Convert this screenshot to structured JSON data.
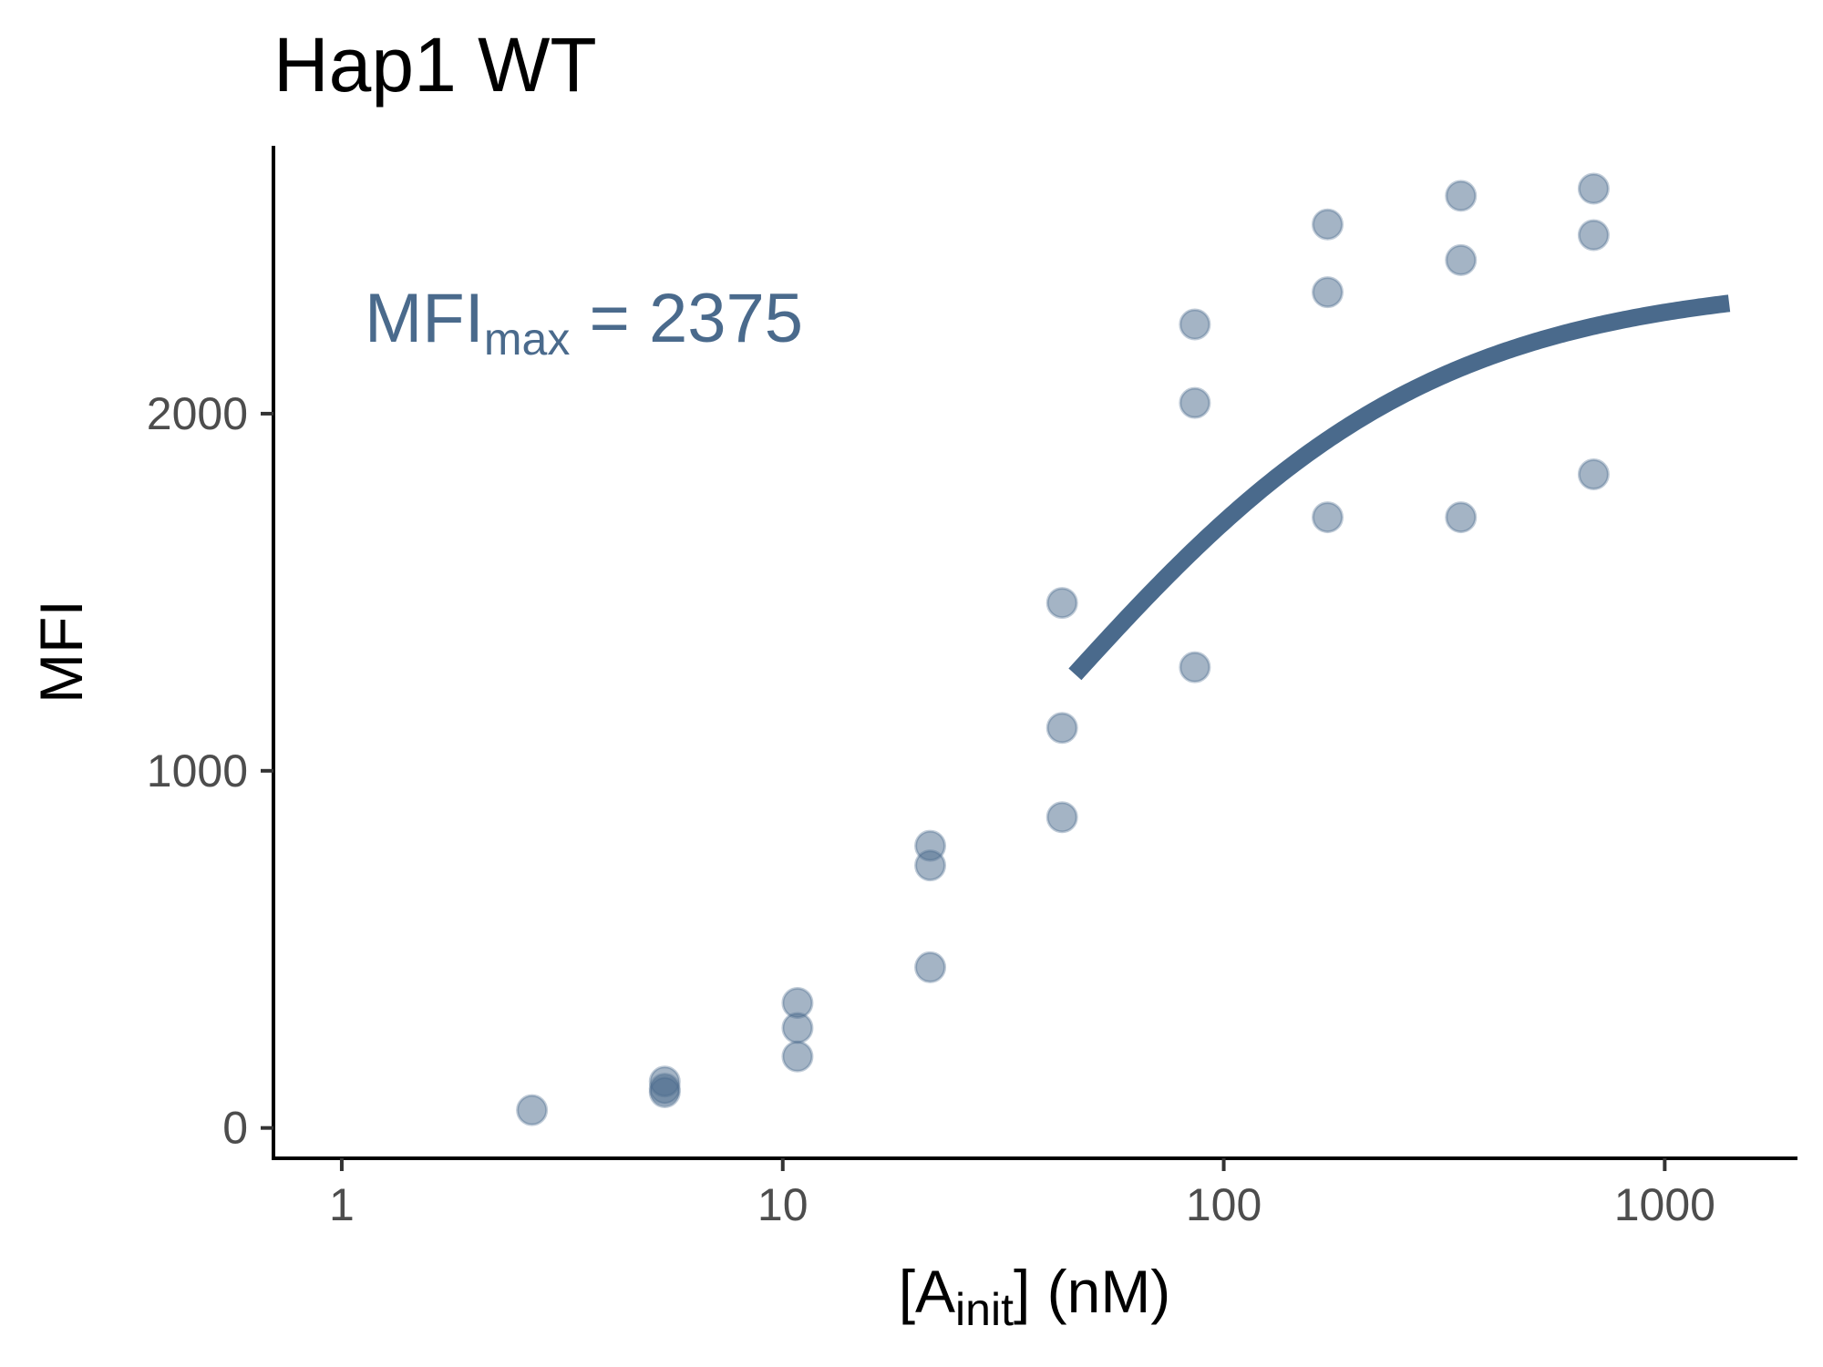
{
  "chart_data": {
    "type": "scatter",
    "title": "Hap1 WT",
    "xlabel": {
      "main": "[A",
      "sub": "init",
      "tail": "] (nM)"
    },
    "ylabel": "MFI",
    "x_scale": "log10",
    "xlim": [
      0.7,
      2000
    ],
    "ylim": [
      -85,
      2750
    ],
    "x_ticks": [
      {
        "value": 1,
        "label": "1"
      },
      {
        "value": 10,
        "label": "10"
      },
      {
        "value": 100,
        "label": "100"
      },
      {
        "value": 1000,
        "label": "1000"
      }
    ],
    "y_ticks": [
      {
        "value": 0,
        "label": "0"
      },
      {
        "value": 1000,
        "label": "1000"
      },
      {
        "value": 2000,
        "label": "2000"
      }
    ],
    "grid": false,
    "legend": "none",
    "point_color": "#4a6a8c",
    "curve_color": "#4a6a8c",
    "annotation": {
      "main": "MFI",
      "sub": "max",
      "tail": " = 2375",
      "color": "#4a6a8c"
    },
    "points": [
      {
        "x": 2.7,
        "y": 50
      },
      {
        "x": 5.4,
        "y": 130
      },
      {
        "x": 5.4,
        "y": 110
      },
      {
        "x": 5.4,
        "y": 100
      },
      {
        "x": 10.8,
        "y": 350
      },
      {
        "x": 10.8,
        "y": 280
      },
      {
        "x": 10.8,
        "y": 200
      },
      {
        "x": 21.6,
        "y": 790
      },
      {
        "x": 21.6,
        "y": 735
      },
      {
        "x": 21.6,
        "y": 450
      },
      {
        "x": 43,
        "y": 1470
      },
      {
        "x": 43,
        "y": 1120
      },
      {
        "x": 43,
        "y": 870
      },
      {
        "x": 86,
        "y": 2250
      },
      {
        "x": 86,
        "y": 2030
      },
      {
        "x": 86,
        "y": 1290
      },
      {
        "x": 172,
        "y": 2530
      },
      {
        "x": 172,
        "y": 2340
      },
      {
        "x": 172,
        "y": 1710
      },
      {
        "x": 345,
        "y": 2610
      },
      {
        "x": 345,
        "y": 2430
      },
      {
        "x": 345,
        "y": 1710
      },
      {
        "x": 690,
        "y": 2630
      },
      {
        "x": 690,
        "y": 2500
      },
      {
        "x": 690,
        "y": 1830
      }
    ],
    "fit_curve": {
      "model": "MFI = MFImax * x / (Kd + x)",
      "MFImax": 2375,
      "Kd": 40,
      "x_range": [
        46,
        1400
      ]
    }
  }
}
